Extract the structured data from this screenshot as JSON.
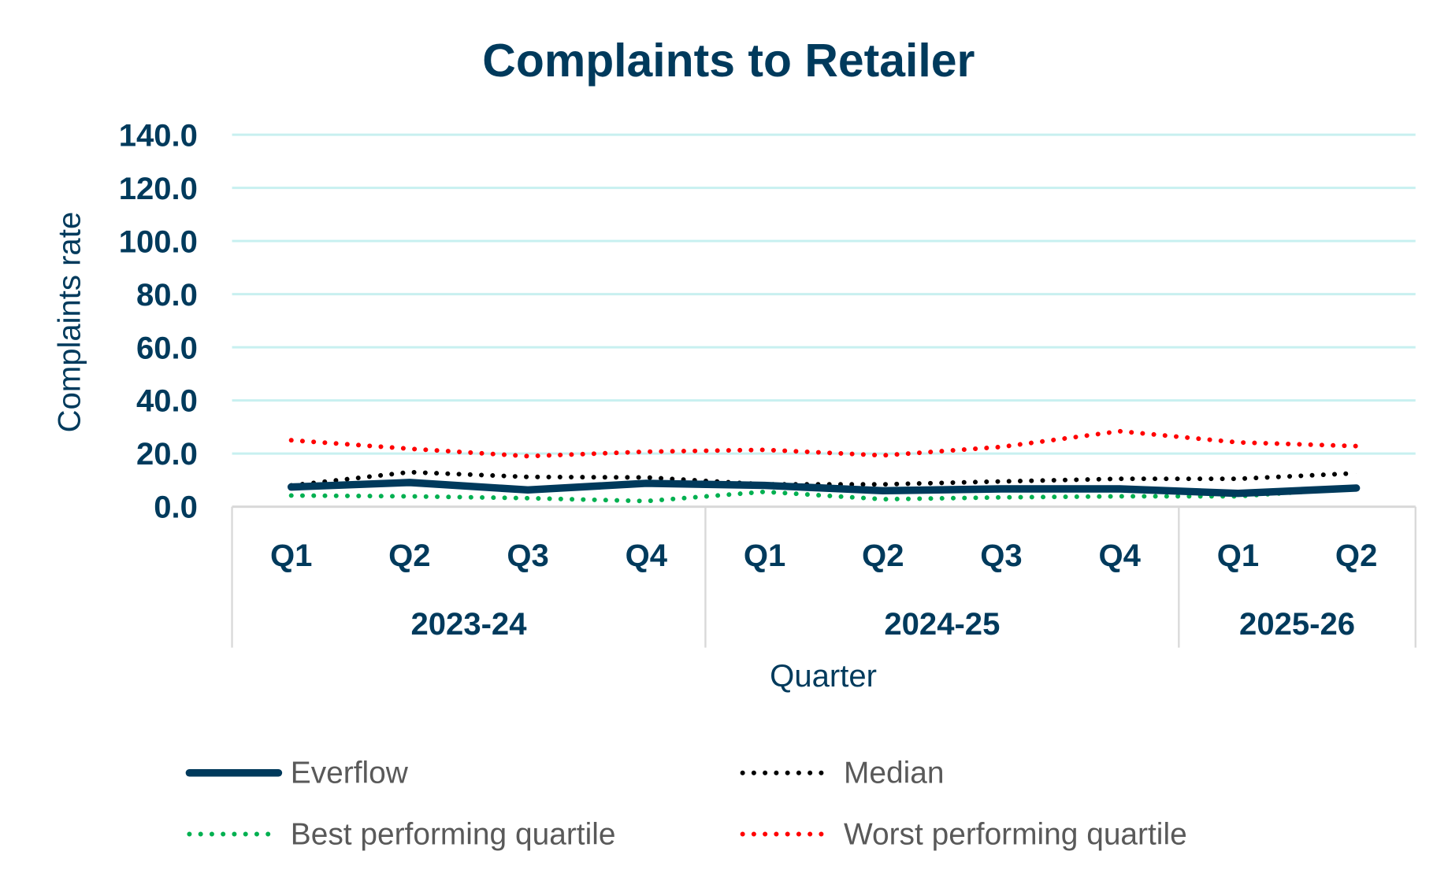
{
  "chart_data": {
    "type": "line",
    "title": "Complaints to Retailer",
    "xlabel": "Quarter",
    "ylabel": "Complaints rate",
    "ylim": [
      0,
      140
    ],
    "yticks": [
      "0.0",
      "20.0",
      "40.0",
      "60.0",
      "80.0",
      "100.0",
      "120.0",
      "140.0"
    ],
    "grid": true,
    "legend_position": "bottom",
    "categories": [
      "Q1",
      "Q2",
      "Q3",
      "Q4",
      "Q1",
      "Q2",
      "Q3",
      "Q4",
      "Q1",
      "Q2"
    ],
    "groups": [
      {
        "label": "2023-24",
        "count": 4
      },
      {
        "label": "2024-25",
        "count": 4
      },
      {
        "label": "2025-26",
        "count": 2
      }
    ],
    "series": [
      {
        "name": "Everflow",
        "color": "#003a5c",
        "style": "solid",
        "values": [
          7.4,
          9.1,
          6.3,
          8.8,
          8.0,
          6.0,
          6.7,
          6.7,
          5.0,
          7.0
        ]
      },
      {
        "name": "Median",
        "color": "#000000",
        "style": "dotted",
        "values": [
          8.0,
          13.0,
          11.2,
          11.0,
          8.4,
          8.4,
          9.5,
          10.5,
          10.5,
          12.6
        ]
      },
      {
        "name": "Best performing quartile",
        "color": "#00b050",
        "style": "dotted",
        "values": [
          4.2,
          3.9,
          3.2,
          2.1,
          5.6,
          2.8,
          3.5,
          3.9,
          3.9,
          7.0
        ]
      },
      {
        "name": "Worst performing quartile",
        "color": "#ff0000",
        "style": "dotted",
        "values": [
          25.0,
          21.8,
          19.0,
          20.7,
          21.4,
          19.3,
          22.5,
          28.4,
          24.2,
          22.8
        ]
      }
    ],
    "colors": {
      "text": "#003a5c",
      "grid": "#c8f0f0",
      "axis": "#d9d9d9"
    }
  }
}
